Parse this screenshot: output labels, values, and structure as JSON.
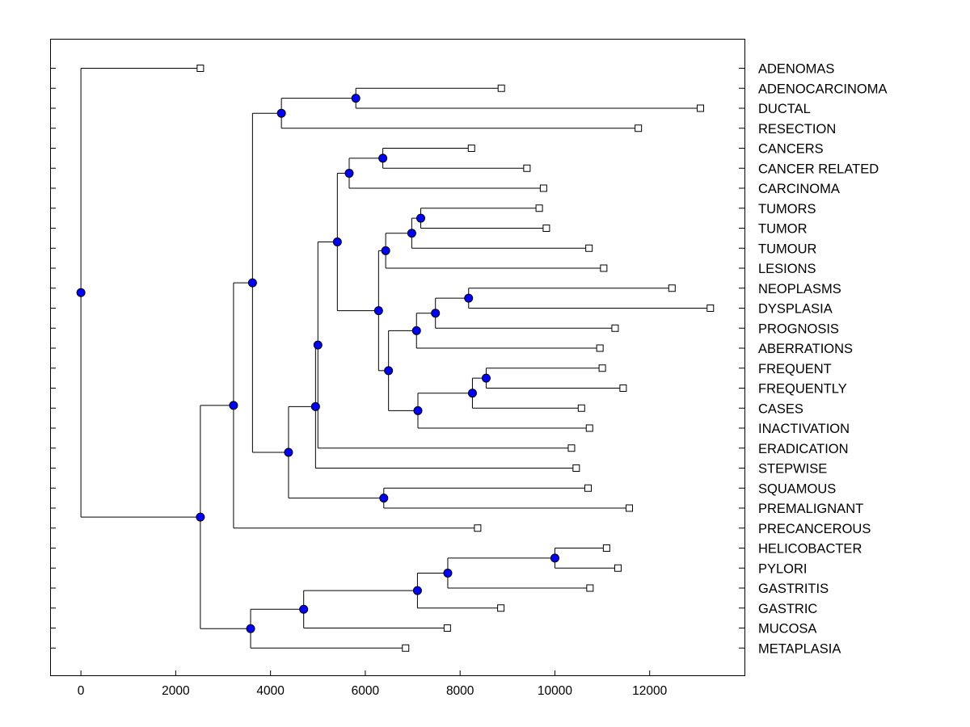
{
  "chart_data": {
    "type": "dendrogram",
    "title": "",
    "xlabel": "",
    "ylabel": "",
    "xlim": [
      -650,
      14000
    ],
    "x_ticks": [
      0,
      2000,
      4000,
      6000,
      8000,
      10000,
      12000
    ],
    "grid": false,
    "colors": {
      "node": "#0000ff",
      "line": "#000000",
      "leaf": "#ffffff"
    },
    "leaves": [
      {
        "name": "ADENOMAS",
        "x": 2520
      },
      {
        "name": "ADENOCARCINOMA",
        "x": 8870
      },
      {
        "name": "DUCTAL",
        "x": 13070
      },
      {
        "name": "RESECTION",
        "x": 11760
      },
      {
        "name": "CANCERS",
        "x": 8240
      },
      {
        "name": "CANCER RELATED",
        "x": 9410
      },
      {
        "name": "CARCINOMA",
        "x": 9760
      },
      {
        "name": "TUMORS",
        "x": 9670
      },
      {
        "name": "TUMOR",
        "x": 9820
      },
      {
        "name": "TUMOUR",
        "x": 10720
      },
      {
        "name": "LESIONS",
        "x": 11030
      },
      {
        "name": "NEOPLASMS",
        "x": 12470
      },
      {
        "name": "DYSPLASIA",
        "x": 13280
      },
      {
        "name": "PROGNOSIS",
        "x": 11270
      },
      {
        "name": "ABERRATIONS",
        "x": 10950
      },
      {
        "name": "FREQUENT",
        "x": 11000
      },
      {
        "name": "FREQUENTLY",
        "x": 11440
      },
      {
        "name": "CASES",
        "x": 10560
      },
      {
        "name": "INACTIVATION",
        "x": 10730
      },
      {
        "name": "ERADICATION",
        "x": 10350
      },
      {
        "name": "STEPWISE",
        "x": 10450
      },
      {
        "name": "SQUAMOUS",
        "x": 10700
      },
      {
        "name": "PREMALIGNANT",
        "x": 11570
      },
      {
        "name": "PRECANCEROUS",
        "x": 8370
      },
      {
        "name": "HELICOBACTER",
        "x": 11090
      },
      {
        "name": "PYLORI",
        "x": 11330
      },
      {
        "name": "GASTRITIS",
        "x": 10740
      },
      {
        "name": "GASTRIC",
        "x": 8860
      },
      {
        "name": "MUCOSA",
        "x": 7730
      },
      {
        "name": "METAPLASIA",
        "x": 6850
      }
    ],
    "nodes": [
      {
        "id": "n1",
        "x": 5800,
        "children": [
          1,
          2
        ]
      },
      {
        "id": "n2",
        "x": 4230,
        "children": [
          "n1",
          3
        ]
      },
      {
        "id": "n3",
        "x": 6370,
        "children": [
          4,
          5
        ]
      },
      {
        "id": "n4",
        "x": 5660,
        "children": [
          "n3",
          6
        ]
      },
      {
        "id": "n5",
        "x": 7170,
        "children": [
          7,
          8
        ]
      },
      {
        "id": "n6",
        "x": 6980,
        "children": [
          "n5",
          9
        ]
      },
      {
        "id": "n7",
        "x": 6430,
        "children": [
          "n6",
          10
        ]
      },
      {
        "id": "n8",
        "x": 8180,
        "children": [
          11,
          12
        ]
      },
      {
        "id": "n9",
        "x": 7480,
        "children": [
          "n8",
          13
        ]
      },
      {
        "id": "n10",
        "x": 7080,
        "children": [
          "n9",
          14
        ]
      },
      {
        "id": "n11",
        "x": 8550,
        "children": [
          15,
          16
        ]
      },
      {
        "id": "n12",
        "x": 8260,
        "children": [
          "n11",
          17
        ]
      },
      {
        "id": "n13",
        "x": 7110,
        "children": [
          "n12",
          18
        ]
      },
      {
        "id": "n14",
        "x": 6490,
        "children": [
          "n10",
          "n13"
        ]
      },
      {
        "id": "n15",
        "x": 6280,
        "children": [
          "n7",
          "n14"
        ]
      },
      {
        "id": "n16",
        "x": 5410,
        "children": [
          "n4",
          "n15"
        ]
      },
      {
        "id": "n17",
        "x": 5000,
        "children": [
          "n16",
          19
        ]
      },
      {
        "id": "n18",
        "x": 4950,
        "children": [
          "n17",
          20
        ]
      },
      {
        "id": "n19",
        "x": 6390,
        "children": [
          21,
          22
        ]
      },
      {
        "id": "n20",
        "x": 4380,
        "children": [
          "n18",
          "n19"
        ]
      },
      {
        "id": "n21",
        "x": 3620,
        "children": [
          "n2",
          "n20"
        ]
      },
      {
        "id": "n22",
        "x": 3220,
        "children": [
          "n21",
          23
        ]
      },
      {
        "id": "n23",
        "x": 10000,
        "children": [
          24,
          25
        ]
      },
      {
        "id": "n24",
        "x": 7740,
        "children": [
          "n23",
          26
        ]
      },
      {
        "id": "n25",
        "x": 7100,
        "children": [
          "n24",
          27
        ]
      },
      {
        "id": "n26",
        "x": 4700,
        "children": [
          "n25",
          28
        ]
      },
      {
        "id": "n27",
        "x": 3580,
        "children": [
          "n26",
          29
        ]
      },
      {
        "id": "n28",
        "x": 2520,
        "children": [
          "n22",
          "n27"
        ]
      },
      {
        "id": "root",
        "x": 0,
        "children": [
          0,
          "n28"
        ]
      }
    ]
  }
}
